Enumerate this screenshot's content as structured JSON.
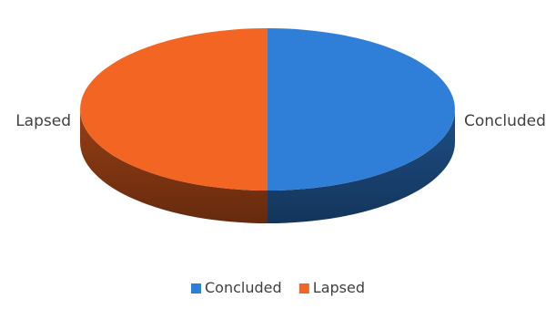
{
  "chart_data": {
    "type": "pie",
    "style": "3d",
    "categories": [
      "Concluded",
      "Lapsed"
    ],
    "values": [
      50,
      50
    ],
    "colors": [
      "#2F7ED8",
      "#F26522"
    ],
    "data_labels": [
      "Concluded",
      "Lapsed"
    ],
    "legend": {
      "position": "bottom",
      "entries": [
        "Concluded",
        "Lapsed"
      ]
    }
  }
}
